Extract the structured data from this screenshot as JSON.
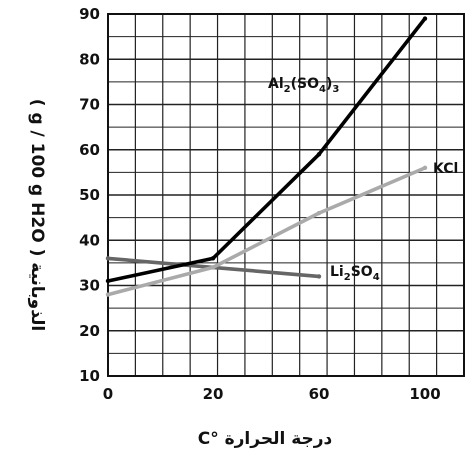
{
  "chart_data": {
    "type": "line",
    "title": "",
    "xlabel": "درجة الحرارة °C",
    "ylabel": "الذوبانية ( g / 100 g H2O )",
    "x_ticks": [
      "0",
      "20",
      "60",
      "100"
    ],
    "y_ticks": [
      "10",
      "20",
      "30",
      "40",
      "50",
      "60",
      "70",
      "80",
      "90"
    ],
    "xlim": [
      0,
      100
    ],
    "ylim": [
      10,
      90
    ],
    "x_scale": "nonlinear: ticks at 0, 20, 60, 100",
    "grid": true,
    "series": [
      {
        "name": "Al2(SO4)3",
        "color": "#000000",
        "x": [
          0,
          20,
          60,
          100
        ],
        "y": [
          31,
          36,
          59,
          89
        ]
      },
      {
        "name": "KCl",
        "color": "#aaaaaa",
        "x": [
          0,
          20,
          60,
          100
        ],
        "y": [
          28,
          34,
          46,
          56
        ]
      },
      {
        "name": "Li2SO4",
        "color": "#666666",
        "x": [
          0,
          20,
          60
        ],
        "y": [
          36,
          34,
          32
        ]
      }
    ]
  }
}
